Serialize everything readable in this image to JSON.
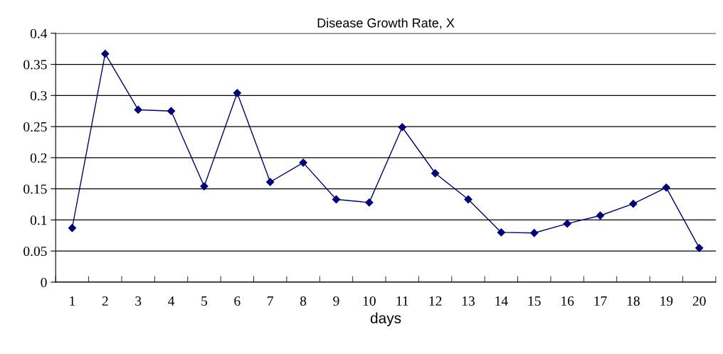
{
  "chart_data": {
    "type": "line",
    "title": "Disease Growth Rate, X",
    "xlabel": "days",
    "categories": [
      "1",
      "2",
      "3",
      "4",
      "5",
      "6",
      "7",
      "8",
      "9",
      "10",
      "11",
      "12",
      "13",
      "14",
      "15",
      "16",
      "17",
      "18",
      "19",
      "20"
    ],
    "series": [
      {
        "color": "#00007f",
        "values": [
          0.087,
          0.367,
          0.277,
          0.275,
          0.154,
          0.304,
          0.161,
          0.192,
          0.133,
          0.128,
          0.249,
          0.175,
          0.133,
          0.08,
          0.079,
          0.094,
          0.107,
          0.126,
          0.152,
          0.055
        ]
      }
    ],
    "ylim": [
      0,
      0.4
    ],
    "yticks": [
      0,
      0.05,
      0.1,
      0.15,
      0.2,
      0.25,
      0.3,
      0.35,
      0.4
    ],
    "grid": "y",
    "marker": "diamond",
    "line_style": "solid",
    "legend": false
  }
}
